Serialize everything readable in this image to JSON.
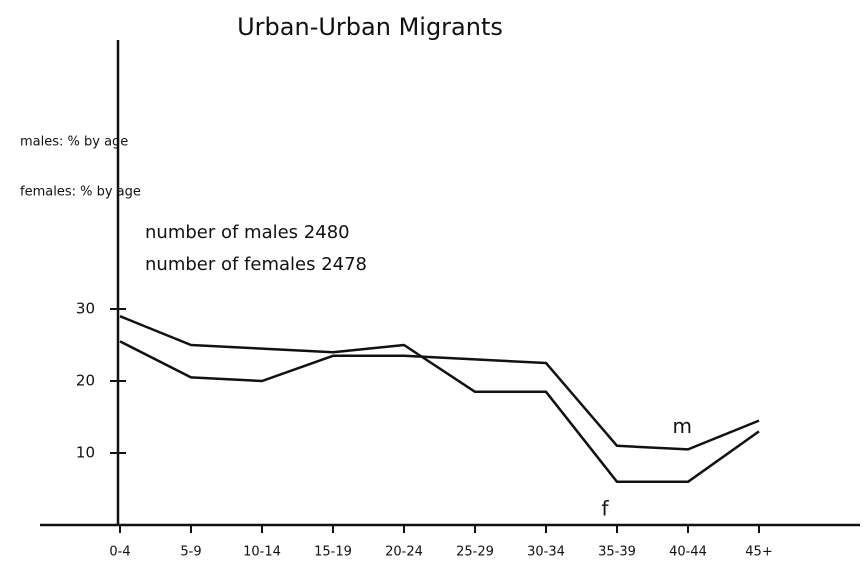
{
  "chart_data": {
    "type": "line",
    "title": "Urban-Urban Migrants",
    "y_labels": [
      "males: % by age",
      "females: % by age"
    ],
    "annotations": [
      "number of males 2480",
      "number of females 2478"
    ],
    "categories": [
      "0-4",
      "5-9",
      "10-14",
      "15-19",
      "20-24",
      "25-29",
      "30-34",
      "35-39",
      "40-44",
      "45+"
    ],
    "series": [
      {
        "name": "f",
        "color": "#111111",
        "values": [
          29,
          25,
          24.5,
          24,
          25,
          18.5,
          18.5,
          6,
          6,
          13
        ]
      },
      {
        "name": "m",
        "color": "#111111",
        "values": [
          25.5,
          20.5,
          20,
          23.5,
          23.5,
          23,
          22.5,
          11,
          10.5,
          14.5
        ]
      }
    ],
    "ylim": [
      0,
      40
    ],
    "yticks": [
      10,
      20,
      30
    ]
  }
}
